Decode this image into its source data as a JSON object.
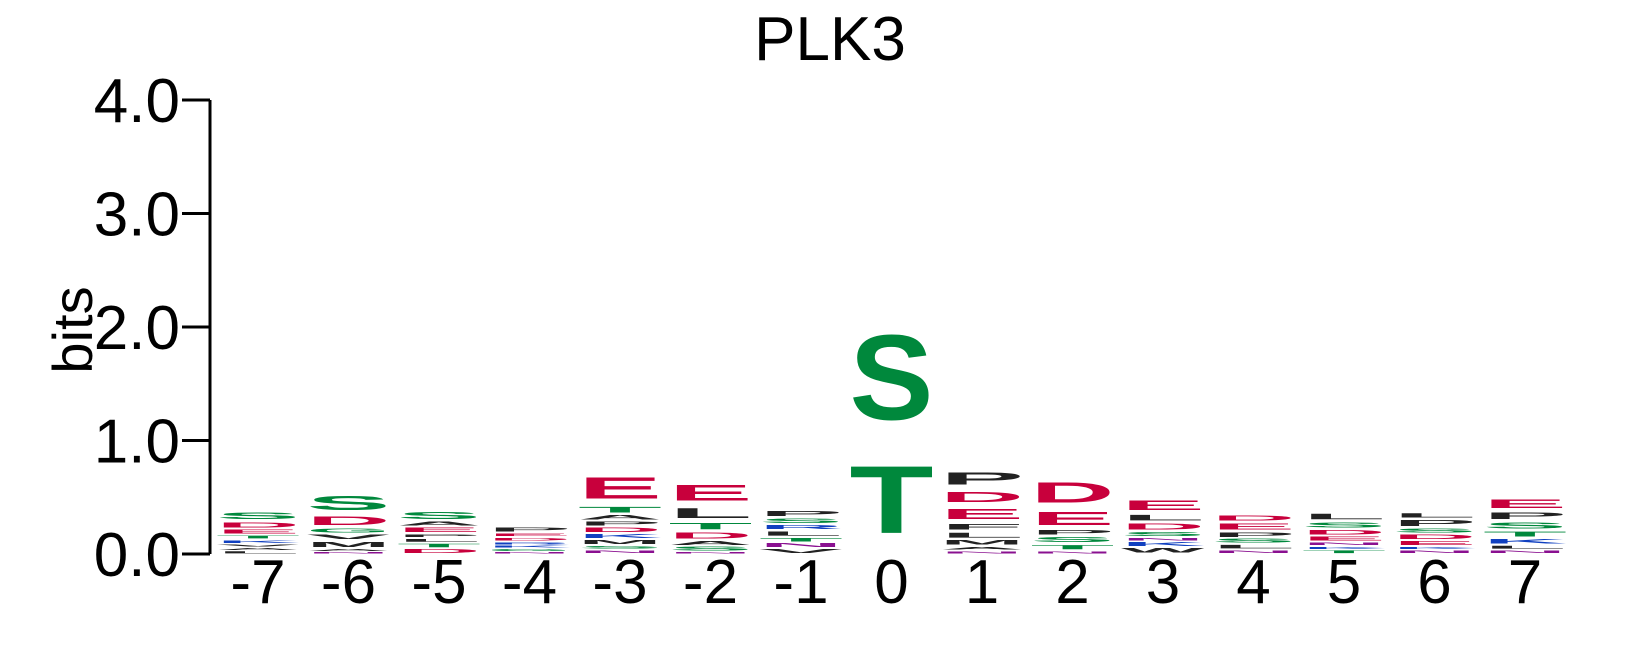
{
  "chart_data": {
    "type": "sequence-logo",
    "title": "PLK3",
    "ylabel": "bits",
    "xlabel": "",
    "ylim": [
      0,
      4.0
    ],
    "yticks": [
      "0.0",
      "1.0",
      "2.0",
      "3.0",
      "4.0"
    ],
    "grid": false,
    "legend": "none",
    "colors": {
      "acidic": "#c8003c",
      "polar": "#00883c",
      "hydrophobic": "#222222",
      "basic": "#1040c0",
      "amide": "#8a1090"
    },
    "letter_colors": {
      "D": "#c8003c",
      "E": "#c8003c",
      "S": "#00883c",
      "T": "#00883c",
      "G": "#00883c",
      "C": "#00883c",
      "Y": "#00883c",
      "A": "#222222",
      "V": "#222222",
      "L": "#222222",
      "I": "#222222",
      "P": "#222222",
      "W": "#222222",
      "F": "#222222",
      "M": "#222222",
      "K": "#1040c0",
      "R": "#1040c0",
      "H": "#1040c0",
      "N": "#8a1090",
      "Q": "#8a1090"
    },
    "positions": [
      {
        "label": "-7",
        "letters": [
          [
            "L",
            0.03
          ],
          [
            "A",
            0.03
          ],
          [
            "V",
            0.03
          ],
          [
            "K",
            0.04
          ],
          [
            "T",
            0.04
          ],
          [
            "E",
            0.05
          ],
          [
            "D",
            0.07
          ],
          [
            "S",
            0.09
          ]
        ]
      },
      {
        "label": "-6",
        "letters": [
          [
            "N",
            0.02
          ],
          [
            "A",
            0.03
          ],
          [
            "M",
            0.07
          ],
          [
            "V",
            0.06
          ],
          [
            "G",
            0.05
          ],
          [
            "D",
            0.12
          ],
          [
            "S",
            0.2
          ]
        ]
      },
      {
        "label": "-5",
        "letters": [
          [
            "D",
            0.05
          ],
          [
            "T",
            0.05
          ],
          [
            "L",
            0.04
          ],
          [
            "P",
            0.04
          ],
          [
            "E",
            0.06
          ],
          [
            "A",
            0.05
          ],
          [
            "S",
            0.1
          ]
        ]
      },
      {
        "label": "-4",
        "letters": [
          [
            "N",
            0.02
          ],
          [
            "G",
            0.03
          ],
          [
            "K",
            0.03
          ],
          [
            "R",
            0.03
          ],
          [
            "D",
            0.04
          ],
          [
            "E",
            0.04
          ],
          [
            "P",
            0.05
          ]
        ]
      },
      {
        "label": "-3",
        "letters": [
          [
            "N",
            0.04
          ],
          [
            "S",
            0.04
          ],
          [
            "M",
            0.05
          ],
          [
            "K",
            0.05
          ],
          [
            "D",
            0.06
          ],
          [
            "P",
            0.05
          ],
          [
            "A",
            0.06
          ],
          [
            "T",
            0.08
          ],
          [
            "E",
            0.3
          ]
        ]
      },
      {
        "label": "-2",
        "letters": [
          [
            "N",
            0.02
          ],
          [
            "S",
            0.05
          ],
          [
            "A",
            0.05
          ],
          [
            "D",
            0.08
          ],
          [
            "T",
            0.09
          ],
          [
            "L",
            0.14
          ],
          [
            "E",
            0.22
          ]
        ]
      },
      {
        "label": "-1",
        "letters": [
          [
            "V",
            0.05
          ],
          [
            "N",
            0.05
          ],
          [
            "T",
            0.05
          ],
          [
            "L",
            0.06
          ],
          [
            "R",
            0.05
          ],
          [
            "S",
            0.06
          ],
          [
            "P",
            0.07
          ]
        ]
      },
      {
        "label": "0",
        "letters": [
          [
            "T",
            0.95
          ],
          [
            "S",
            1.2
          ]
        ]
      },
      {
        "label": "1",
        "letters": [
          [
            "N",
            0.03
          ],
          [
            "A",
            0.04
          ],
          [
            "M",
            0.06
          ],
          [
            "L",
            0.07
          ],
          [
            "F",
            0.08
          ],
          [
            "E",
            0.15
          ],
          [
            "D",
            0.15
          ],
          [
            "P",
            0.17
          ]
        ]
      },
      {
        "label": "2",
        "letters": [
          [
            "N",
            0.03
          ],
          [
            "T",
            0.06
          ],
          [
            "S",
            0.07
          ],
          [
            "P",
            0.06
          ],
          [
            "E",
            0.18
          ],
          [
            "D",
            0.28
          ]
        ]
      },
      {
        "label": "3",
        "letters": [
          [
            "W",
            0.06
          ],
          [
            "K",
            0.05
          ],
          [
            "N",
            0.04
          ],
          [
            "S",
            0.05
          ],
          [
            "D",
            0.08
          ],
          [
            "L",
            0.08
          ],
          [
            "E",
            0.14
          ]
        ]
      },
      {
        "label": "4",
        "letters": [
          [
            "N",
            0.04
          ],
          [
            "L",
            0.05
          ],
          [
            "S",
            0.05
          ],
          [
            "P",
            0.06
          ],
          [
            "E",
            0.08
          ],
          [
            "D",
            0.07
          ]
        ]
      },
      {
        "label": "5",
        "letters": [
          [
            "T",
            0.04
          ],
          [
            "K",
            0.03
          ],
          [
            "N",
            0.04
          ],
          [
            "E",
            0.05
          ],
          [
            "D",
            0.06
          ],
          [
            "S",
            0.07
          ],
          [
            "L",
            0.08
          ]
        ]
      },
      {
        "label": "6",
        "letters": [
          [
            "N",
            0.04
          ],
          [
            "K",
            0.03
          ],
          [
            "E",
            0.05
          ],
          [
            "D",
            0.06
          ],
          [
            "S",
            0.05
          ],
          [
            "P",
            0.08
          ],
          [
            "L",
            0.06
          ]
        ]
      },
      {
        "label": "7",
        "letters": [
          [
            "N",
            0.04
          ],
          [
            "L",
            0.04
          ],
          [
            "K",
            0.06
          ],
          [
            "T",
            0.07
          ],
          [
            "S",
            0.08
          ],
          [
            "P",
            0.09
          ],
          [
            "E",
            0.12
          ]
        ]
      }
    ]
  }
}
